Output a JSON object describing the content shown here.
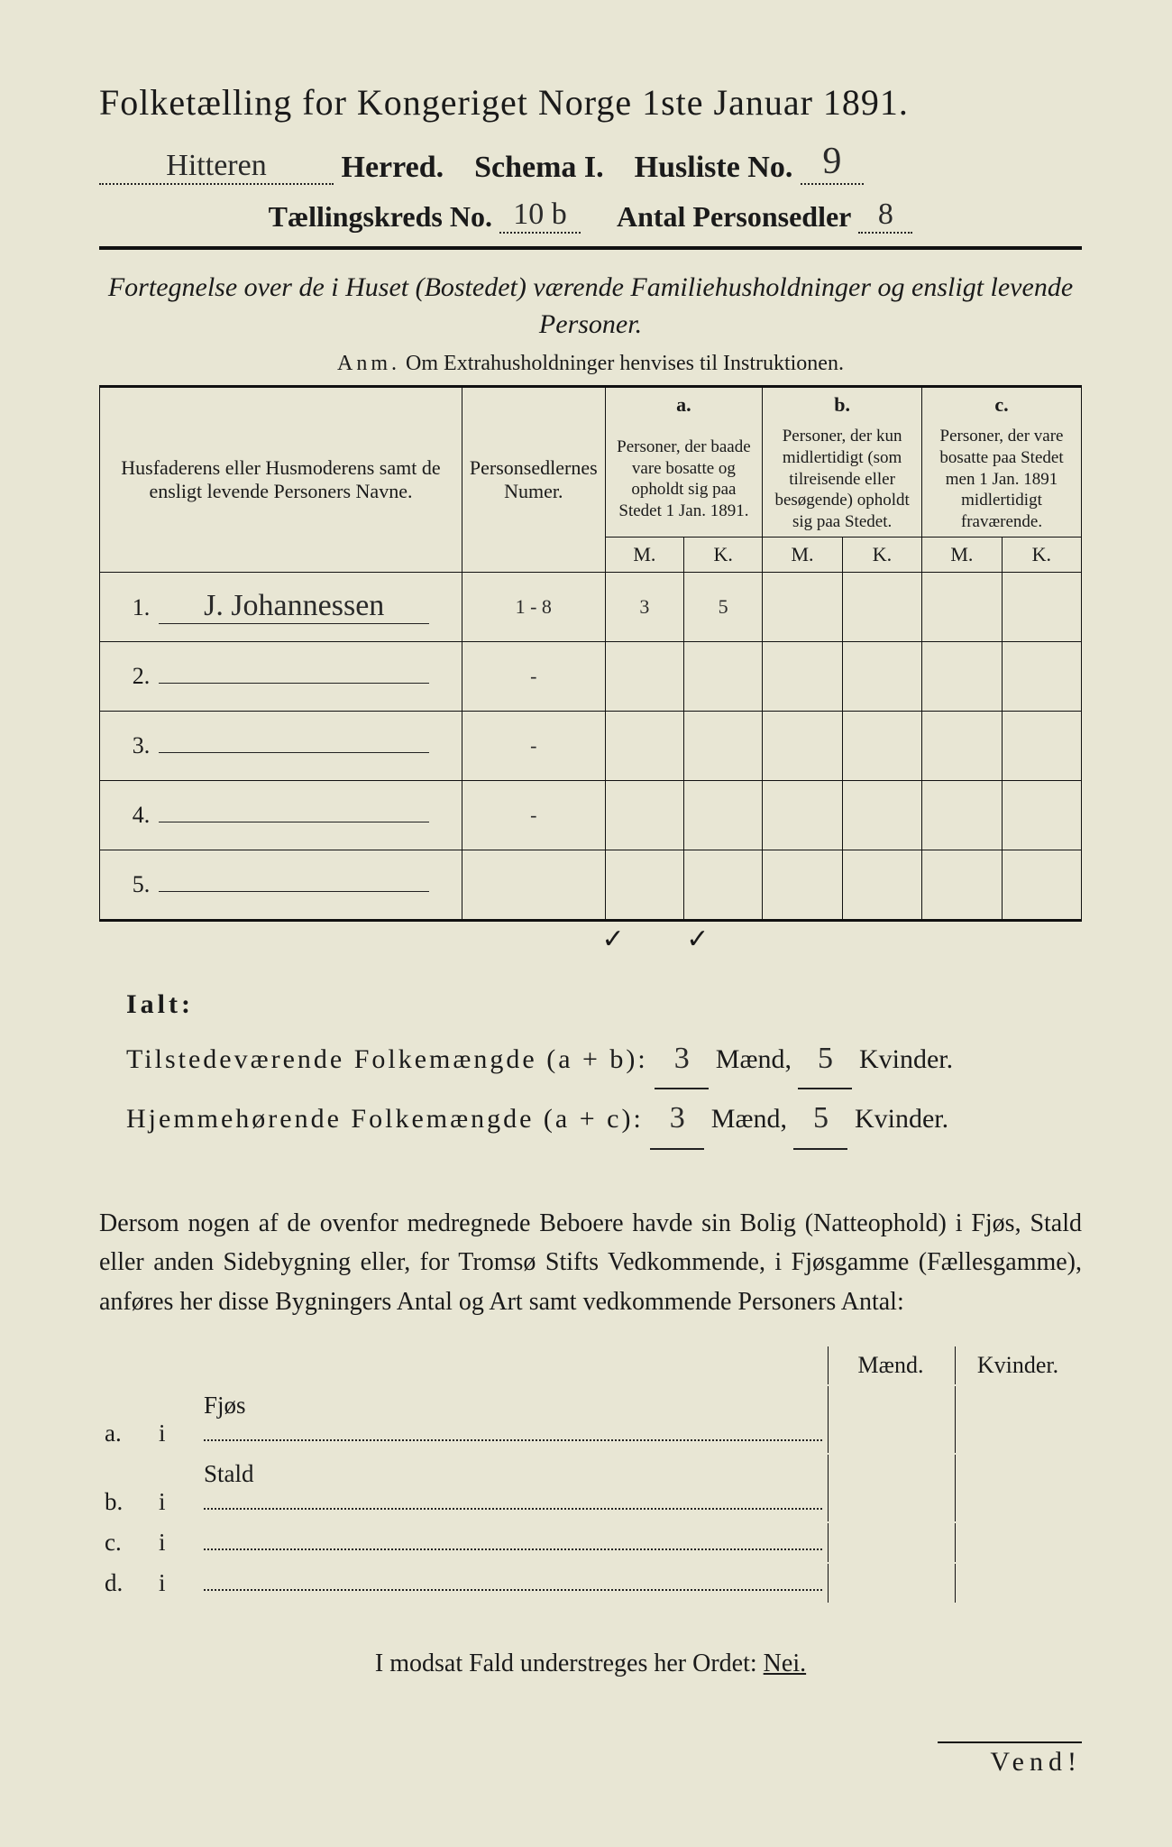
{
  "colors": {
    "background": "#e8e6d4",
    "ink": "#1a1a1a",
    "rule": "#111111"
  },
  "typography": {
    "title_fontsize_pt": 30,
    "header_fontsize_pt": 26,
    "body_fontsize_pt": 21,
    "table_fontsize_pt": 17,
    "handwriting_family": "cursive"
  },
  "title": "Folketælling for Kongeriget Norge 1ste Januar 1891.",
  "line2": {
    "herred_value": "Hitteren",
    "herred_label": "Herred.",
    "schema_label": "Schema I.",
    "husliste_label": "Husliste No.",
    "husliste_value": "9"
  },
  "line3": {
    "kreds_label": "Tællingskreds No.",
    "kreds_value": "10 b",
    "antal_label": "Antal Personsedler",
    "antal_value": "8"
  },
  "subtitle": "Fortegnelse over de i Huset (Bostedet) værende Familiehusholdninger og ensligt levende Personer.",
  "anm": {
    "prefix": "Anm.",
    "text": "Om Extrahusholdninger henvises til Instruktionen."
  },
  "table": {
    "columns": {
      "name": "Husfaderens eller Husmoderens samt de ensligt levende Personers Navne.",
      "numer": "Personsedlernes Numer.",
      "a": {
        "tag": "a.",
        "text": "Personer, der baade vare bosatte og opholdt sig paa Stedet 1 Jan. 1891."
      },
      "b": {
        "tag": "b.",
        "text": "Personer, der kun midlertidigt (som tilreisende eller besøgende) opholdt sig paa Stedet."
      },
      "c": {
        "tag": "c.",
        "text": "Personer, der vare bosatte paa Stedet men 1 Jan. 1891 midlertidigt fraværende."
      },
      "m": "M.",
      "k": "K."
    },
    "rows": [
      {
        "n": "1.",
        "name": "J. Johannessen",
        "numer": "1 - 8",
        "a_m": "3",
        "a_k": "5",
        "b_m": "",
        "b_k": "",
        "c_m": "",
        "c_k": ""
      },
      {
        "n": "2.",
        "name": "",
        "numer": "-",
        "a_m": "",
        "a_k": "",
        "b_m": "",
        "b_k": "",
        "c_m": "",
        "c_k": ""
      },
      {
        "n": "3.",
        "name": "",
        "numer": "-",
        "a_m": "",
        "a_k": "",
        "b_m": "",
        "b_k": "",
        "c_m": "",
        "c_k": ""
      },
      {
        "n": "4.",
        "name": "",
        "numer": "-",
        "a_m": "",
        "a_k": "",
        "b_m": "",
        "b_k": "",
        "c_m": "",
        "c_k": ""
      },
      {
        "n": "5.",
        "name": "",
        "numer": "",
        "a_m": "",
        "a_k": "",
        "b_m": "",
        "b_k": "",
        "c_m": "",
        "c_k": ""
      }
    ],
    "ticks": {
      "a_m": "✓",
      "a_k": "✓"
    }
  },
  "ialt": {
    "label": "Ialt:",
    "row1": {
      "label": "Tilstedeværende Folkemængde (a + b):",
      "m": "3",
      "k": "5",
      "m_label": "Mænd,",
      "k_label": "Kvinder."
    },
    "row2": {
      "label": "Hjemmehørende Folkemængde (a + c):",
      "m": "3",
      "k": "5",
      "m_label": "Mænd,",
      "k_label": "Kvinder."
    }
  },
  "para": "Dersom nogen af de ovenfor medregnede Beboere havde sin Bolig (Natteophold) i Fjøs, Stald eller anden Sidebygning eller, for Tromsø Stifts Vedkommende, i Fjøsgamme (Fællesgamme), anføres her disse Bygningers Antal og Art samt vedkommende Personers Antal:",
  "subtable": {
    "hdr_m": "Mænd.",
    "hdr_k": "Kvinder.",
    "rows": [
      {
        "tag": "a.",
        "i": "i",
        "label": "Fjøs"
      },
      {
        "tag": "b.",
        "i": "i",
        "label": "Stald"
      },
      {
        "tag": "c.",
        "i": "i",
        "label": ""
      },
      {
        "tag": "d.",
        "i": "i",
        "label": ""
      }
    ]
  },
  "modsat": {
    "text": "I modsat Fald understreges her Ordet:",
    "nei": "Nei."
  },
  "vend": "Vend!"
}
